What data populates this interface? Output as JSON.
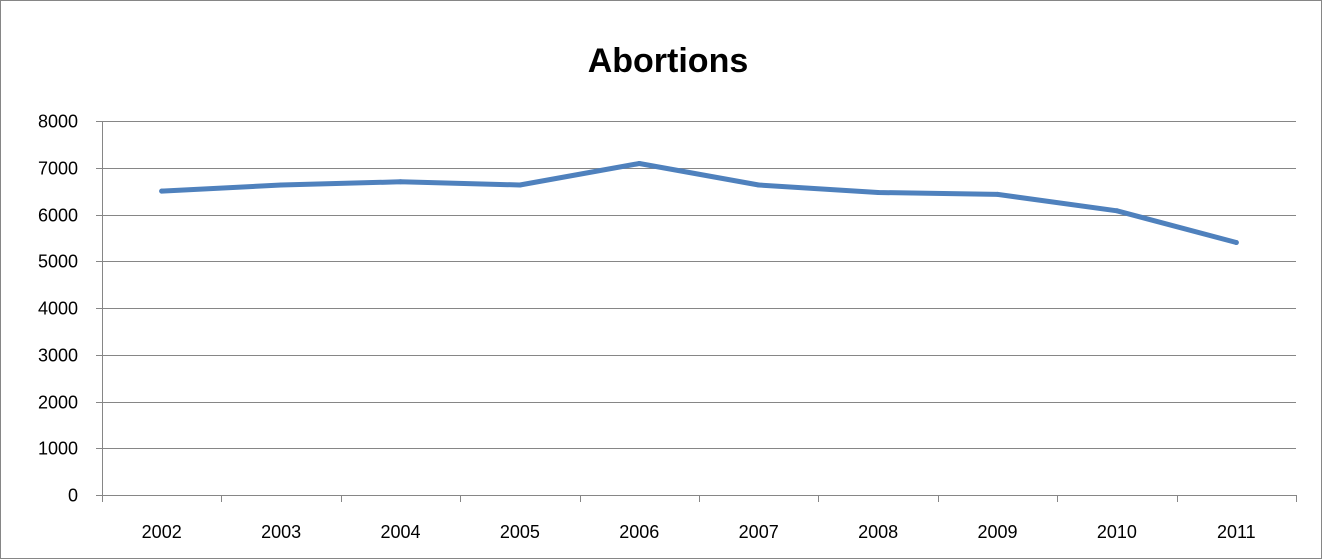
{
  "chart_data": {
    "type": "line",
    "title": "Abortions",
    "xlabel": "",
    "ylabel": "",
    "categories": [
      "2002",
      "2003",
      "2004",
      "2005",
      "2006",
      "2007",
      "2008",
      "2009",
      "2010",
      "2011"
    ],
    "series": [
      {
        "values": [
          6500,
          6630,
          6700,
          6630,
          7090,
          6630,
          6470,
          6430,
          6080,
          5400
        ]
      }
    ],
    "ylim": [
      0,
      8000
    ],
    "yticks": [
      0,
      1000,
      2000,
      3000,
      4000,
      5000,
      6000,
      7000,
      8000
    ],
    "grid": true,
    "legend": "none",
    "colors": {
      "series": "#4f81bd",
      "grid": "#868686",
      "axis": "#868686"
    }
  }
}
